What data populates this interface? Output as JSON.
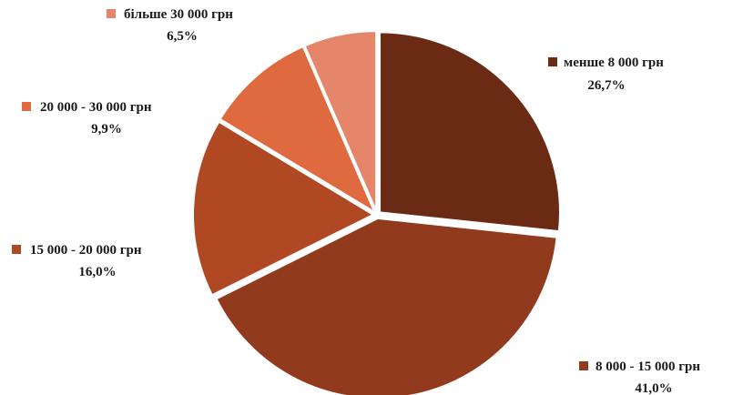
{
  "chart_data": {
    "type": "pie",
    "title": "",
    "start_angle_deg": 0,
    "direction": "clockwise",
    "exploded": true,
    "slices": [
      {
        "label": "менше 8 000 грн",
        "value": 26.7,
        "display": "26,7%",
        "color": "#6b2a14"
      },
      {
        "label": "8 000 - 15 000 грн",
        "value": 41.0,
        "display": "41,0%",
        "color": "#923a1e"
      },
      {
        "label": "15 000 - 20 000 грн",
        "value": 16.0,
        "display": "16,0%",
        "color": "#b04824"
      },
      {
        "label": "20 000 - 30 000 грн",
        "value": 9.9,
        "display": "9,9%",
        "color": "#df6a40"
      },
      {
        "label": "більше 30 000 грн",
        "value": 6.5,
        "display": "6,5%",
        "color": "#e5866a"
      }
    ]
  }
}
